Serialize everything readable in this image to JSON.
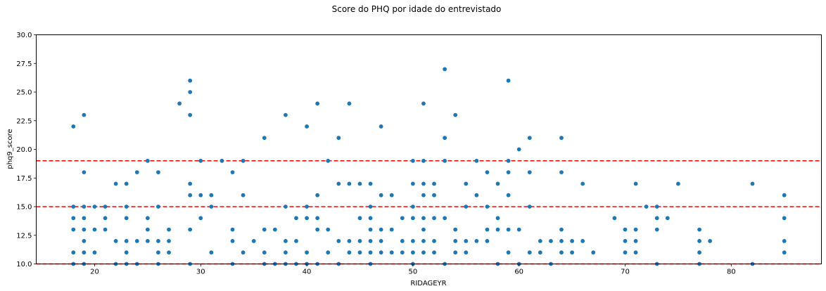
{
  "chart_data": {
    "type": "scatter",
    "title": "Score do PHQ por idade do entrevistado",
    "xlabel": "RIDAGEYR",
    "ylabel": "phq9_score",
    "xlim": [
      14.5,
      88.5
    ],
    "ylim": [
      10.0,
      30.0
    ],
    "xticks": [
      "20",
      "30",
      "40",
      "50",
      "60",
      "70",
      "80"
    ],
    "yticks": [
      "10.0",
      "12.5",
      "15.0",
      "17.5",
      "20.0",
      "22.5",
      "25.0",
      "27.5",
      "30.0"
    ],
    "grid": false,
    "point_color": "#1f77b4",
    "reference_lines": [
      {
        "y": 19,
        "color": "#ff0000",
        "style": "dashed"
      },
      {
        "y": 15,
        "color": "#ff0000",
        "style": "dashed"
      },
      {
        "y": 10,
        "color": "#ff0000",
        "style": "dashed"
      }
    ],
    "points": [
      [
        18,
        22
      ],
      [
        18,
        15
      ],
      [
        18,
        14
      ],
      [
        18,
        13
      ],
      [
        18,
        11
      ],
      [
        18,
        10
      ],
      [
        19,
        23
      ],
      [
        19,
        18
      ],
      [
        19,
        15
      ],
      [
        19,
        14
      ],
      [
        19,
        13
      ],
      [
        19,
        12
      ],
      [
        19,
        11
      ],
      [
        19,
        10
      ],
      [
        20,
        15
      ],
      [
        20,
        13
      ],
      [
        20,
        11
      ],
      [
        21,
        15
      ],
      [
        21,
        14
      ],
      [
        21,
        13
      ],
      [
        22,
        17
      ],
      [
        22,
        12
      ],
      [
        22,
        10
      ],
      [
        23,
        17
      ],
      [
        23,
        15
      ],
      [
        23,
        14
      ],
      [
        23,
        12
      ],
      [
        23,
        11
      ],
      [
        23,
        10
      ],
      [
        24,
        18
      ],
      [
        24,
        12
      ],
      [
        24,
        10
      ],
      [
        25,
        19
      ],
      [
        25,
        14
      ],
      [
        25,
        13
      ],
      [
        25,
        12
      ],
      [
        26,
        18
      ],
      [
        26,
        15
      ],
      [
        26,
        12
      ],
      [
        26,
        11
      ],
      [
        26,
        10
      ],
      [
        27,
        13
      ],
      [
        27,
        12
      ],
      [
        27,
        11
      ],
      [
        28,
        24
      ],
      [
        29,
        26
      ],
      [
        29,
        25
      ],
      [
        29,
        23
      ],
      [
        29,
        17
      ],
      [
        29,
        16
      ],
      [
        29,
        13
      ],
      [
        29,
        10
      ],
      [
        30,
        19
      ],
      [
        30,
        16
      ],
      [
        30,
        14
      ],
      [
        31,
        16
      ],
      [
        31,
        15
      ],
      [
        31,
        11
      ],
      [
        32,
        19
      ],
      [
        33,
        18
      ],
      [
        33,
        13
      ],
      [
        33,
        12
      ],
      [
        33,
        10
      ],
      [
        34,
        19
      ],
      [
        34,
        16
      ],
      [
        34,
        11
      ],
      [
        35,
        12
      ],
      [
        36,
        21
      ],
      [
        36,
        13
      ],
      [
        36,
        11
      ],
      [
        36,
        10
      ],
      [
        37,
        13
      ],
      [
        37,
        10
      ],
      [
        38,
        23
      ],
      [
        38,
        15
      ],
      [
        38,
        12
      ],
      [
        38,
        11
      ],
      [
        38,
        10
      ],
      [
        39,
        14
      ],
      [
        39,
        12
      ],
      [
        39,
        10
      ],
      [
        40,
        22
      ],
      [
        40,
        15
      ],
      [
        40,
        14
      ],
      [
        40,
        11
      ],
      [
        40,
        10
      ],
      [
        41,
        24
      ],
      [
        41,
        16
      ],
      [
        41,
        14
      ],
      [
        41,
        13
      ],
      [
        41,
        10
      ],
      [
        42,
        19
      ],
      [
        42,
        13
      ],
      [
        42,
        11
      ],
      [
        43,
        21
      ],
      [
        43,
        17
      ],
      [
        43,
        12
      ],
      [
        43,
        10
      ],
      [
        44,
        24
      ],
      [
        44,
        17
      ],
      [
        44,
        12
      ],
      [
        44,
        11
      ],
      [
        45,
        17
      ],
      [
        45,
        14
      ],
      [
        45,
        12
      ],
      [
        45,
        11
      ],
      [
        46,
        17
      ],
      [
        46,
        15
      ],
      [
        46,
        14
      ],
      [
        46,
        13
      ],
      [
        46,
        12
      ],
      [
        46,
        11
      ],
      [
        46,
        10
      ],
      [
        47,
        22
      ],
      [
        47,
        16
      ],
      [
        47,
        13
      ],
      [
        47,
        12
      ],
      [
        47,
        11
      ],
      [
        48,
        16
      ],
      [
        48,
        13
      ],
      [
        48,
        11
      ],
      [
        49,
        14
      ],
      [
        49,
        12
      ],
      [
        49,
        11
      ],
      [
        50,
        19
      ],
      [
        50,
        17
      ],
      [
        50,
        15
      ],
      [
        50,
        14
      ],
      [
        50,
        12
      ],
      [
        50,
        11
      ],
      [
        50,
        10
      ],
      [
        51,
        24
      ],
      [
        51,
        19
      ],
      [
        51,
        17
      ],
      [
        51,
        16
      ],
      [
        51,
        14
      ],
      [
        51,
        13
      ],
      [
        51,
        12
      ],
      [
        51,
        11
      ],
      [
        52,
        17
      ],
      [
        52,
        16
      ],
      [
        52,
        14
      ],
      [
        52,
        12
      ],
      [
        52,
        11
      ],
      [
        53,
        27
      ],
      [
        53,
        21
      ],
      [
        53,
        19
      ],
      [
        53,
        14
      ],
      [
        53,
        10
      ],
      [
        54,
        23
      ],
      [
        54,
        13
      ],
      [
        54,
        12
      ],
      [
        54,
        11
      ],
      [
        55,
        17
      ],
      [
        55,
        15
      ],
      [
        55,
        12
      ],
      [
        55,
        11
      ],
      [
        56,
        19
      ],
      [
        56,
        16
      ],
      [
        56,
        12
      ],
      [
        57,
        18
      ],
      [
        57,
        15
      ],
      [
        57,
        13
      ],
      [
        57,
        12
      ],
      [
        58,
        17
      ],
      [
        58,
        14
      ],
      [
        58,
        13
      ],
      [
        58,
        10
      ],
      [
        59,
        26
      ],
      [
        59,
        19
      ],
      [
        59,
        18
      ],
      [
        59,
        16
      ],
      [
        59,
        13
      ],
      [
        59,
        11
      ],
      [
        60,
        20
      ],
      [
        60,
        13
      ],
      [
        60,
        10
      ],
      [
        61,
        21
      ],
      [
        61,
        18
      ],
      [
        61,
        15
      ],
      [
        61,
        11
      ],
      [
        62,
        12
      ],
      [
        62,
        11
      ],
      [
        63,
        12
      ],
      [
        63,
        10
      ],
      [
        64,
        21
      ],
      [
        64,
        18
      ],
      [
        64,
        13
      ],
      [
        64,
        12
      ],
      [
        64,
        11
      ],
      [
        65,
        12
      ],
      [
        65,
        11
      ],
      [
        66,
        17
      ],
      [
        66,
        12
      ],
      [
        67,
        11
      ],
      [
        69,
        14
      ],
      [
        70,
        13
      ],
      [
        70,
        12
      ],
      [
        70,
        11
      ],
      [
        71,
        17
      ],
      [
        71,
        13
      ],
      [
        71,
        12
      ],
      [
        71,
        11
      ],
      [
        72,
        15
      ],
      [
        73,
        15
      ],
      [
        73,
        14
      ],
      [
        73,
        13
      ],
      [
        73,
        10
      ],
      [
        74,
        14
      ],
      [
        75,
        17
      ],
      [
        77,
        13
      ],
      [
        77,
        12
      ],
      [
        77,
        11
      ],
      [
        77,
        10
      ],
      [
        78,
        12
      ],
      [
        82,
        17
      ],
      [
        82,
        10
      ],
      [
        85,
        16
      ],
      [
        85,
        14
      ],
      [
        85,
        12
      ],
      [
        85,
        11
      ]
    ]
  }
}
